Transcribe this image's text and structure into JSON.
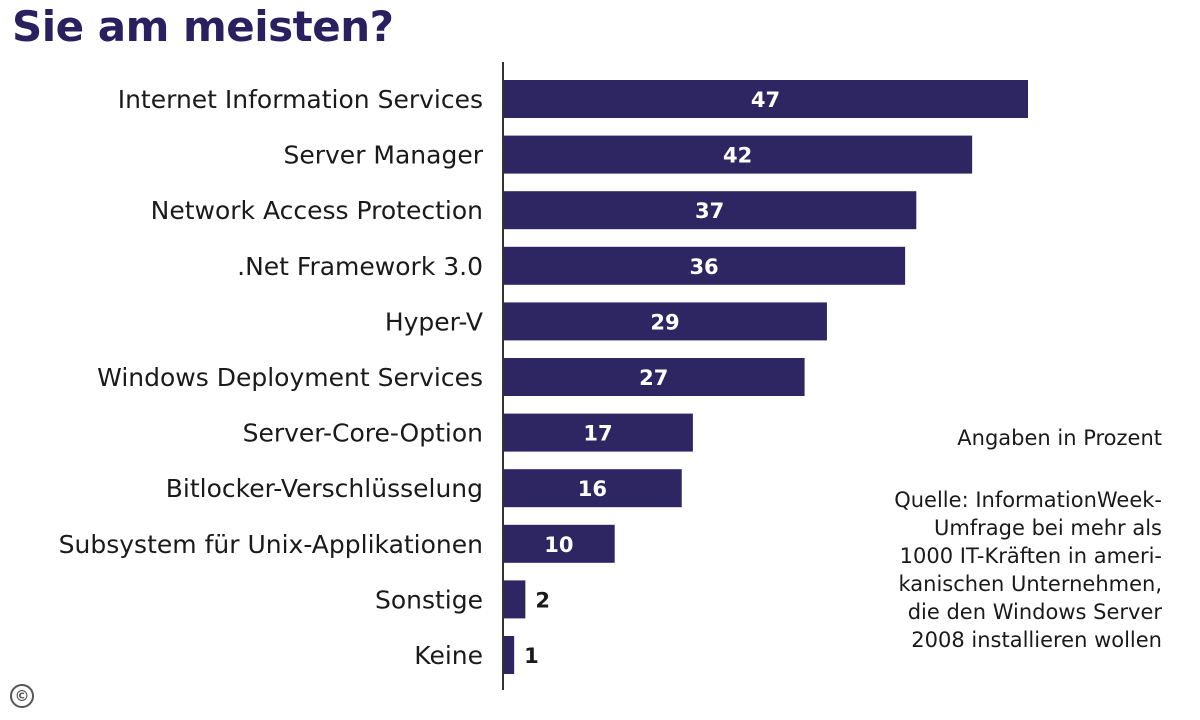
{
  "title": "Sie am meisten?",
  "notes": {
    "unit": "Angaben in Prozent",
    "source_lines": [
      "Quelle: InformationWeek-",
      "Umfrage bei mehr als",
      "1000 IT-Kräften in ameri-",
      "kanischen Unternehmen,",
      "die den Windows Server",
      "2008 installieren wollen"
    ]
  },
  "copyright_symbol": "©",
  "colors": {
    "bar": "#2e2563",
    "label_inside": "#ffffff",
    "label_outside": "#1a1a1a",
    "axis": "#333333"
  },
  "chart_data": {
    "type": "bar",
    "orientation": "horizontal",
    "categories": [
      "Internet Information Services",
      "Server Manager",
      "Network Access Protection",
      ".Net Framework 3.0",
      "Hyper-V",
      "Windows Deployment Services",
      "Server-Core-Option",
      "Bitlocker-Verschlüsselung",
      "Subsystem für Unix-Applikationen",
      "Sonstige",
      "Keine"
    ],
    "values": [
      47,
      42,
      37,
      36,
      29,
      27,
      17,
      16,
      10,
      2,
      1
    ],
    "data_labels": [
      "47",
      "42",
      "37",
      "36",
      "29",
      "27",
      "17",
      "16",
      "10",
      "2",
      "1"
    ],
    "xlim": [
      0,
      47
    ],
    "grid": false,
    "legend": "none"
  }
}
